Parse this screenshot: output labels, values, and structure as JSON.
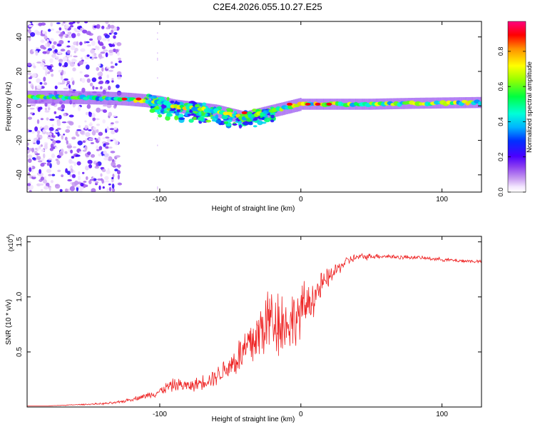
{
  "page": {
    "title": "C2E4.2026.055.10.27.E25"
  },
  "chart_data": [
    {
      "type": "heatmap",
      "title": "C2E4.2026.055.10.27.E25",
      "xlabel": "Height of straight line (km)",
      "ylabel": "Frequency (Hz)",
      "xlim": [
        -194,
        128
      ],
      "ylim": [
        -50,
        49
      ],
      "xticks": [
        -100,
        0,
        100
      ],
      "xtick_labels": [
        "-100",
        "0",
        "100"
      ],
      "yticks": [
        -40,
        -20,
        0,
        20,
        40
      ],
      "ytick_labels": [
        "-40",
        "-20",
        "0",
        "20",
        "40"
      ],
      "colorbar": {
        "label": "Normalized spectral amplitude",
        "range": [
          0,
          0.97
        ],
        "ticks": [
          0.0,
          0.2,
          0.4,
          0.6,
          0.8
        ],
        "tick_labels": [
          "0.0",
          "0.2",
          "0.4",
          "0.6",
          "0.8"
        ]
      },
      "ridge": {
        "x": [
          -194,
          -170,
          -140,
          -125,
          -110,
          -100,
          -90,
          -80,
          -70,
          -60,
          -50,
          -40,
          -35,
          -30,
          -20,
          -10,
          0,
          20,
          50,
          80,
          128
        ],
        "y": [
          5,
          5,
          4.5,
          4,
          3,
          2,
          0,
          -1,
          -2,
          -3,
          -5,
          -7,
          -6,
          -5,
          -3,
          -1,
          1,
          1,
          1,
          1.5,
          2
        ]
      }
    },
    {
      "type": "line",
      "xlabel": "Height of straight line (km)",
      "ylabel": "SNR (10 * v/v)",
      "scale_label": "(x10",
      "scale_exp": "4",
      "scale_close": ")",
      "xlim": [
        -194,
        128
      ],
      "ylim": [
        0,
        1.55
      ],
      "xticks": [
        -100,
        0,
        100
      ],
      "xtick_labels": [
        "-100",
        "0",
        "100"
      ],
      "yticks": [
        0.5,
        1.0,
        1.5
      ],
      "ytick_labels": [
        "0.5",
        "1.0",
        "1.5"
      ],
      "series": [
        {
          "name": "SNR",
          "color": "#ee2222",
          "x": [
            -194,
            -180,
            -160,
            -140,
            -130,
            -120,
            -110,
            -100,
            -95,
            -90,
            -85,
            -80,
            -75,
            -70,
            -65,
            -60,
            -55,
            -50,
            -45,
            -40,
            -35,
            -30,
            -25,
            -20,
            -15,
            -10,
            -5,
            0,
            5,
            10,
            15,
            20,
            25,
            30,
            35,
            40,
            50,
            60,
            70,
            80,
            90,
            100,
            110,
            128
          ],
          "y": [
            0.01,
            0.01,
            0.02,
            0.03,
            0.04,
            0.07,
            0.1,
            0.14,
            0.18,
            0.2,
            0.2,
            0.19,
            0.2,
            0.23,
            0.25,
            0.28,
            0.33,
            0.38,
            0.44,
            0.5,
            0.58,
            0.66,
            0.76,
            0.82,
            0.78,
            0.75,
            0.8,
            0.85,
            0.95,
            1.02,
            1.1,
            1.18,
            1.24,
            1.3,
            1.34,
            1.36,
            1.37,
            1.37,
            1.36,
            1.36,
            1.35,
            1.34,
            1.33,
            1.32
          ],
          "noise": [
            0,
            0,
            0.005,
            0.01,
            0.015,
            0.02,
            0.03,
            0.05,
            0.06,
            0.07,
            0.07,
            0.06,
            0.07,
            0.08,
            0.09,
            0.1,
            0.12,
            0.15,
            0.2,
            0.28,
            0.32,
            0.35,
            0.38,
            0.42,
            0.4,
            0.32,
            0.3,
            0.3,
            0.25,
            0.2,
            0.15,
            0.1,
            0.08,
            0.06,
            0.05,
            0.04,
            0.03,
            0.025,
            0.025,
            0.02,
            0.02,
            0.02,
            0.02,
            0.02
          ]
        }
      ]
    }
  ]
}
